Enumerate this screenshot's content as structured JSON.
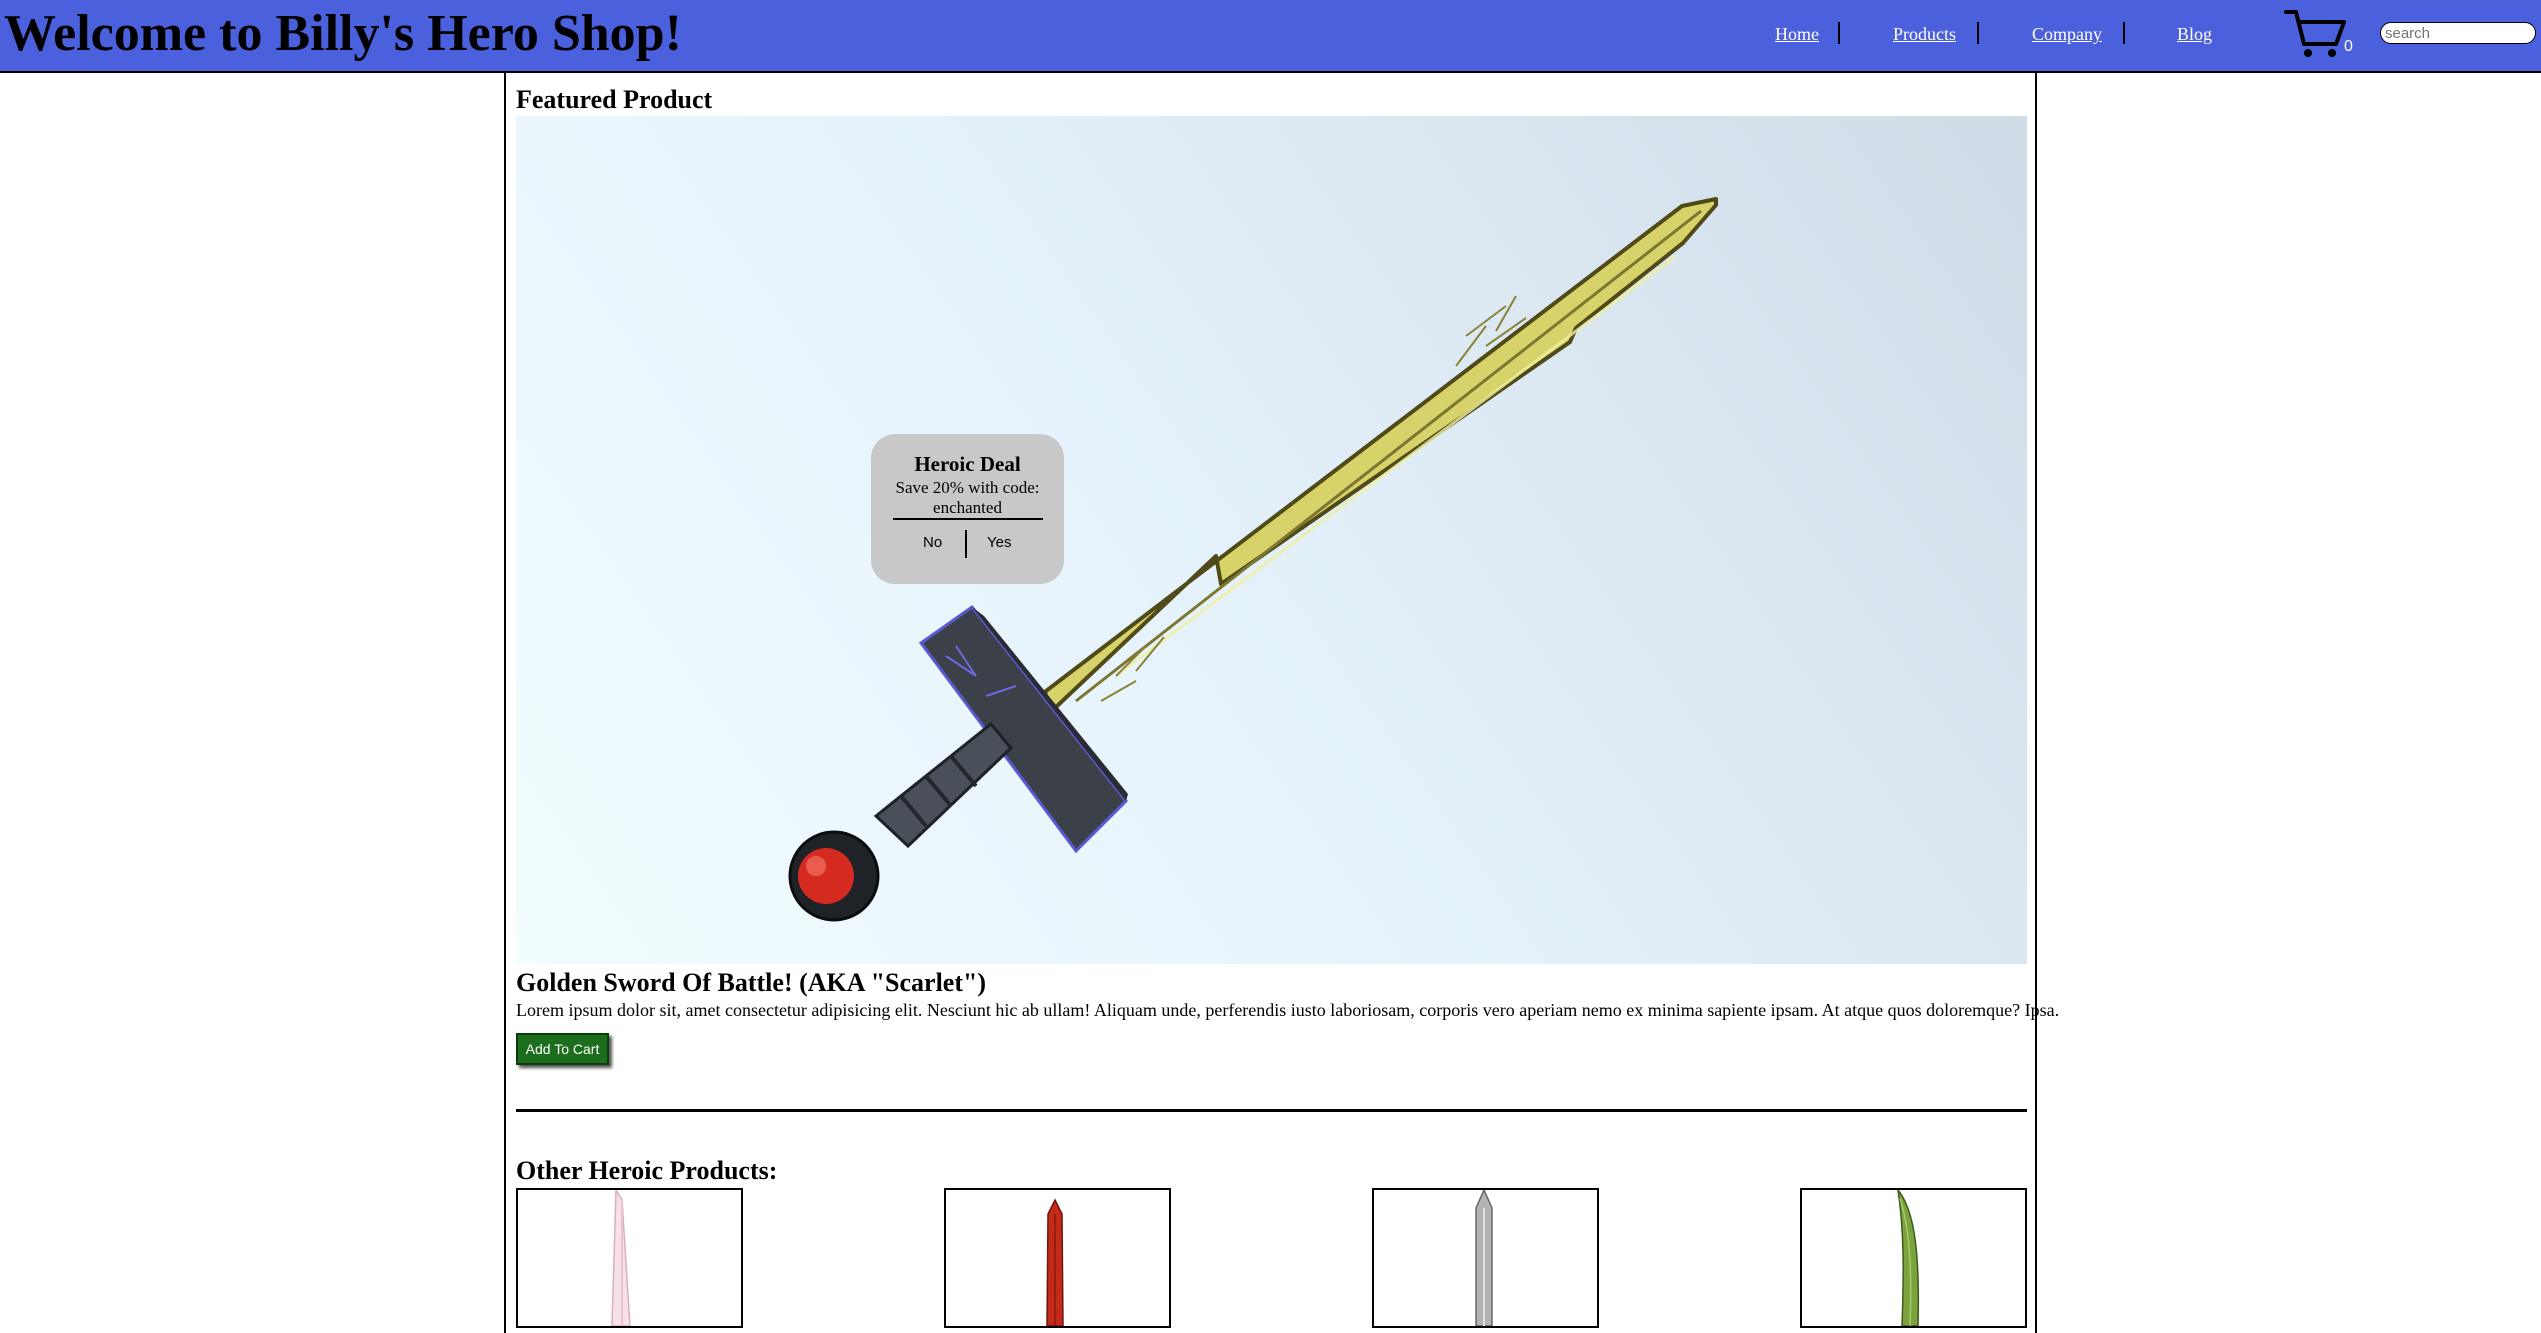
{
  "header": {
    "title": "Welcome to Billy's Hero Shop!",
    "nav": [
      {
        "label": "Home"
      },
      {
        "label": "Products"
      },
      {
        "label": "Company"
      },
      {
        "label": "Blog"
      }
    ],
    "cart_count": "0",
    "search_placeholder": "search",
    "bar_color": "#4a60dc"
  },
  "featured": {
    "heading": "Featured Product",
    "product_name": "Golden Sword Of Battle! (AKA \"Scarlet\")",
    "description": "Lorem ipsum dolor sit, amet consectetur adipisicing elit. Nesciunt hic ab ullam! Aliquam unde, perferendis iusto laboriosam, corporis vero aperiam nemo ex minima sapiente ipsam. At atque quos doloremque? Ipsa.",
    "add_to_cart_label": "Add To Cart",
    "button_color": "#1c6e1c"
  },
  "popup": {
    "title": "Heroic Deal",
    "message": "Save 20% with code: enchanted",
    "no_label": "No",
    "yes_label": "Yes"
  },
  "other": {
    "heading": "Other Heroic Products:",
    "products": [
      {
        "icon": "pink-sword-icon"
      },
      {
        "icon": "red-sword-icon"
      },
      {
        "icon": "silver-sword-icon"
      },
      {
        "icon": "green-blade-icon"
      }
    ]
  }
}
